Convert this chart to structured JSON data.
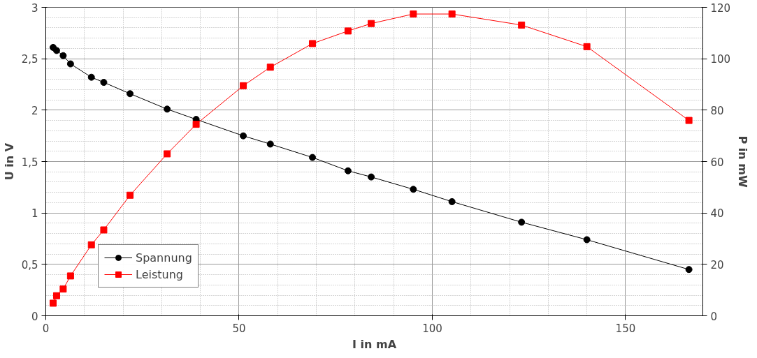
{
  "chart_data": {
    "type": "line",
    "xlabel": "I in mA",
    "ylabel": "U in V",
    "y2label": "P in mW",
    "xlim": [
      0,
      170
    ],
    "xticks": [
      0,
      50,
      100,
      150
    ],
    "ylim": [
      0,
      3
    ],
    "yticks": [
      0,
      {
        "value": 0.5,
        "label": "0,5"
      },
      1,
      {
        "value": 1.5,
        "label": "1,5"
      },
      2,
      {
        "value": 2.5,
        "label": "2,5"
      },
      3
    ],
    "y2lim": [
      0,
      120
    ],
    "y2ticks": [
      0,
      20,
      40,
      60,
      80,
      100,
      120
    ],
    "grid": true,
    "legend": "bottom left",
    "line_style": "solid",
    "x": [
      1.9,
      2.8,
      4.5,
      6.4,
      11.8,
      15.0,
      21.8,
      31.4,
      38.9,
      51.1,
      58.1,
      69.0,
      78.2,
      84.2,
      95.1,
      105.1,
      123.1,
      140.0,
      166.4
    ],
    "series": [
      {
        "name": "Spannung",
        "color": "#000000",
        "marker": "circle",
        "values": [
          2.61,
          2.58,
          2.53,
          2.45,
          2.32,
          2.27,
          2.16,
          2.01,
          1.91,
          1.75,
          1.67,
          1.54,
          1.41,
          1.35,
          1.23,
          1.11,
          0.91,
          0.74,
          0.45
        ]
      },
      {
        "name": "Leistung",
        "color": "#ff0000",
        "marker": "square",
        "axis": "y2",
        "values": [
          4.9,
          7.8,
          10.4,
          15.5,
          27.6,
          33.4,
          46.9,
          63.0,
          74.5,
          89.5,
          96.7,
          105.9,
          110.8,
          113.7,
          117.4,
          117.4,
          113.1,
          104.7,
          76.0
        ]
      }
    ]
  }
}
